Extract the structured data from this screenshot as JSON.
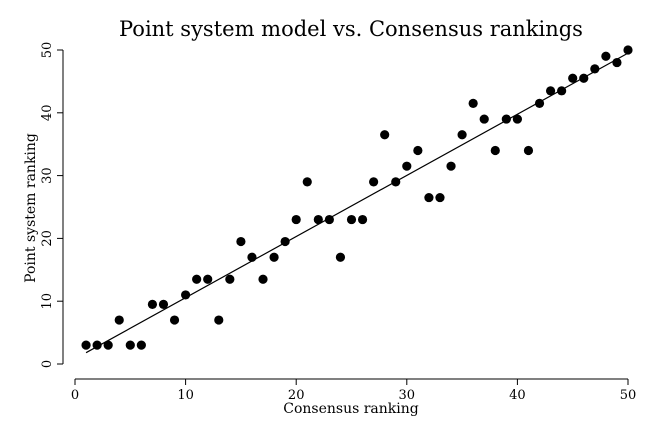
{
  "chart_data": {
    "type": "scatter",
    "title": "Point system model vs. Consensus rankings",
    "xlabel": "Consensus ranking",
    "ylabel": "Point system ranking",
    "xlim": [
      0,
      50
    ],
    "ylim": [
      0,
      50
    ],
    "xticks": [
      0,
      10,
      20,
      30,
      40,
      50
    ],
    "yticks": [
      0,
      10,
      20,
      30,
      40,
      50
    ],
    "grid": false,
    "series": [
      {
        "x": [
          1,
          2,
          3,
          4,
          5,
          6,
          7,
          8,
          9,
          10,
          11,
          12,
          13,
          14,
          15,
          16,
          17,
          18,
          19,
          20,
          21,
          22,
          23,
          24,
          25,
          26,
          27,
          28,
          29,
          30,
          31,
          32,
          33,
          34,
          35,
          36,
          37,
          38,
          39,
          40,
          41,
          42,
          43,
          44,
          45,
          46,
          47,
          48,
          49,
          50
        ],
        "y": [
          3,
          3,
          3,
          7,
          3,
          3,
          9.5,
          9.5,
          7,
          11,
          13.5,
          13.5,
          7,
          13.5,
          19.5,
          17,
          13.5,
          17,
          19.5,
          23,
          29,
          23,
          23,
          17,
          23,
          23,
          29,
          36.5,
          29,
          31.5,
          34,
          26.5,
          26.5,
          31.5,
          36.5,
          41.5,
          39,
          34,
          39,
          39,
          34,
          41.5,
          43.5,
          43.5,
          45.5,
          45.5,
          47,
          49,
          48,
          50
        ]
      }
    ],
    "fit_line": {
      "x": [
        1,
        50
      ],
      "y": [
        1.8,
        49.5
      ]
    }
  }
}
